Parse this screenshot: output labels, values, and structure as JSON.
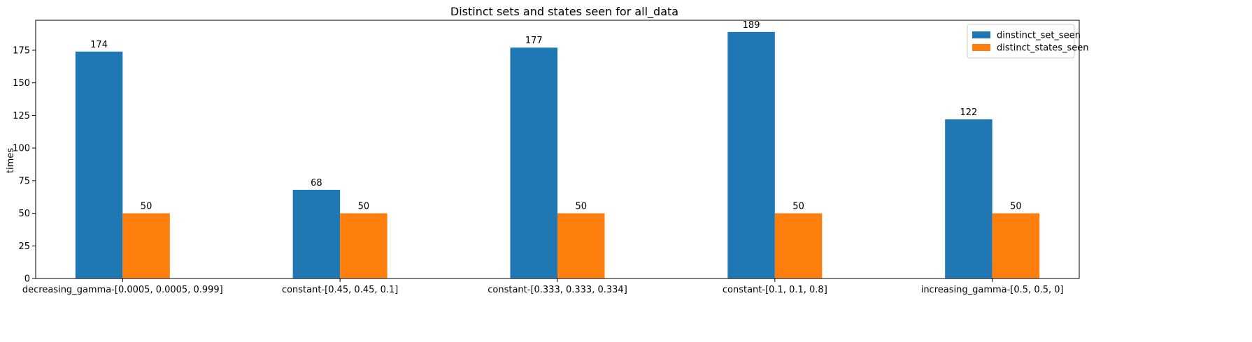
{
  "chart_data": {
    "type": "bar",
    "title": "Distinct sets and states seen for all_data",
    "xlabel": "",
    "ylabel": "times",
    "ylim": [
      0,
      198
    ],
    "yticks": [
      0,
      25,
      50,
      75,
      100,
      125,
      150,
      175
    ],
    "categories": [
      "decreasing_gamma-[0.0005, 0.0005, 0.999]",
      "constant-[0.45, 0.45, 0.1]",
      "constant-[0.333, 0.333, 0.334]",
      "constant-[0.1, 0.1, 0.8]",
      "increasing_gamma-[0.5, 0.5, 0]"
    ],
    "series": [
      {
        "name": "dinstinct_set_seen",
        "values": [
          174,
          68,
          177,
          189,
          122
        ],
        "color": "#1f77b4"
      },
      {
        "name": "distinct_states_seen",
        "values": [
          50,
          50,
          50,
          50,
          50
        ],
        "color": "#ff7f0e"
      }
    ],
    "legend_position": "top-right",
    "grid": false
  }
}
